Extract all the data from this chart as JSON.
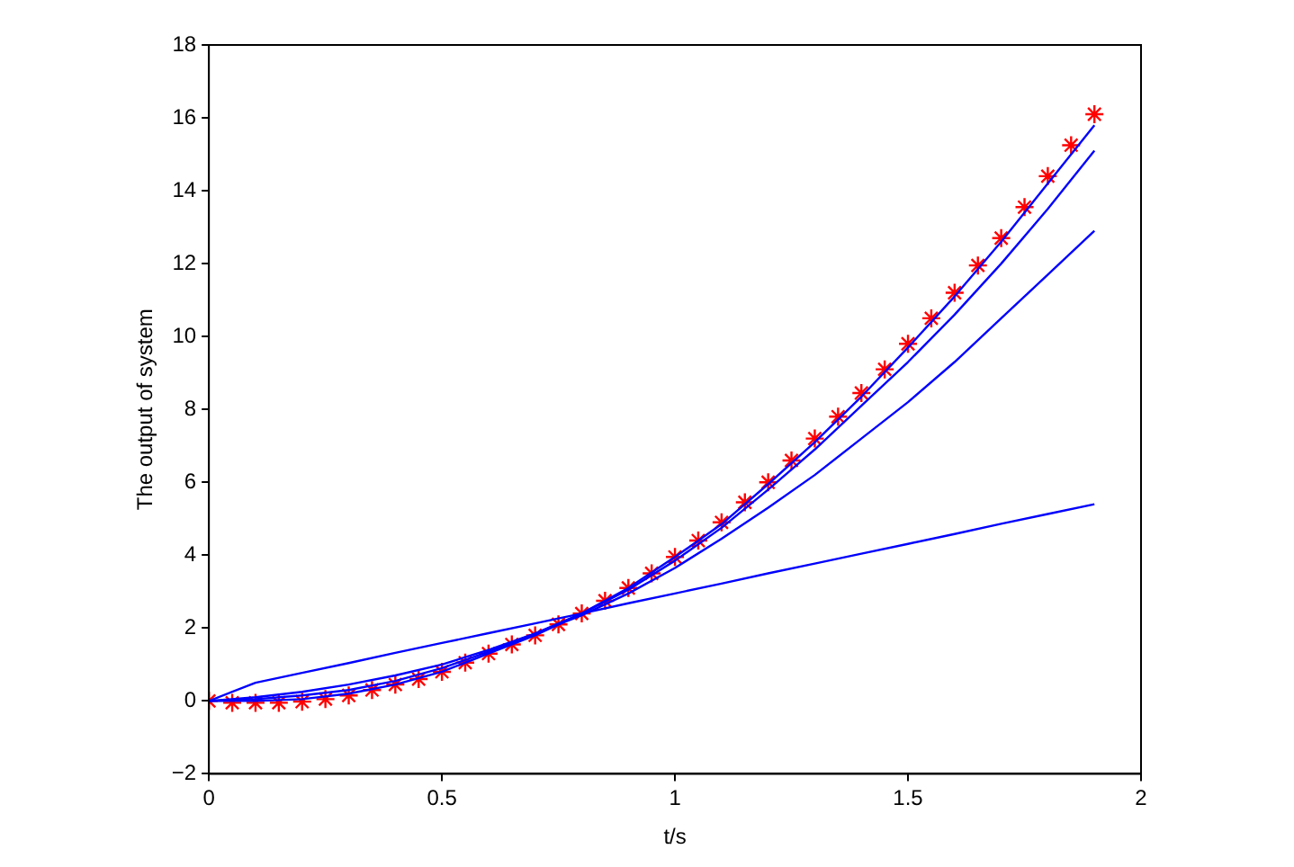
{
  "chart_data": {
    "type": "line",
    "xlabel": "t/s",
    "ylabel": "The output of system",
    "xlim": [
      0,
      2
    ],
    "ylim": [
      -2,
      18
    ],
    "xticks": [
      0,
      0.5,
      1,
      1.5,
      2
    ],
    "yticks": [
      {
        "value": -2,
        "label": "−2"
      },
      0,
      2,
      4,
      6,
      8,
      10,
      12,
      14,
      16,
      18
    ],
    "grid": false,
    "legend": false,
    "series": [
      {
        "color": "#0000ff",
        "marker": "none",
        "x": [
          0,
          0.1,
          0.2,
          0.3,
          0.4,
          0.5,
          0.6,
          0.7,
          0.8,
          0.9,
          1,
          1.1,
          1.2,
          1.3,
          1.4,
          1.5,
          1.6,
          1.7,
          1.8,
          1.9
        ],
        "values": [
          0,
          0.5,
          0.77,
          1.04,
          1.32,
          1.59,
          1.86,
          2.13,
          2.4,
          2.68,
          2.95,
          3.22,
          3.5,
          3.77,
          4.04,
          4.31,
          4.58,
          4.86,
          5.13,
          5.4
        ]
      },
      {
        "color": "#0000ff",
        "marker": "none",
        "x": [
          0,
          0.1,
          0.2,
          0.3,
          0.4,
          0.5,
          0.6,
          0.7,
          0.8,
          0.9,
          1,
          1.1,
          1.2,
          1.3,
          1.4,
          1.5,
          1.6,
          1.7,
          1.8,
          1.9
        ],
        "values": [
          0,
          0.1,
          0.25,
          0.45,
          0.7,
          1.0,
          1.4,
          1.85,
          2.35,
          2.95,
          3.65,
          4.45,
          5.3,
          6.2,
          7.2,
          8.2,
          9.3,
          10.5,
          11.7,
          12.9
        ]
      },
      {
        "color": "#0000ff",
        "marker": "none",
        "x": [
          0,
          0.1,
          0.2,
          0.3,
          0.4,
          0.5,
          0.6,
          0.7,
          0.8,
          0.9,
          1,
          1.1,
          1.2,
          1.3,
          1.4,
          1.5,
          1.6,
          1.7,
          1.8,
          1.9
        ],
        "values": [
          0,
          0.05,
          0.15,
          0.3,
          0.55,
          0.9,
          1.35,
          1.85,
          2.4,
          3.05,
          3.85,
          4.75,
          5.8,
          6.9,
          8.1,
          9.3,
          10.6,
          12.0,
          13.5,
          15.1
        ]
      },
      {
        "color": "#0000ff",
        "marker": "none",
        "x": [
          0,
          0.1,
          0.2,
          0.3,
          0.4,
          0.5,
          0.6,
          0.7,
          0.8,
          0.9,
          1,
          1.1,
          1.2,
          1.3,
          1.4,
          1.5,
          1.6,
          1.7,
          1.8,
          1.9
        ],
        "values": [
          0,
          0,
          0.05,
          0.2,
          0.45,
          0.8,
          1.3,
          1.8,
          2.4,
          3.1,
          3.95,
          4.85,
          5.95,
          7.1,
          8.35,
          9.7,
          11.1,
          12.6,
          14.2,
          15.8
        ]
      },
      {
        "type": "scatter",
        "color": "#ff0000",
        "marker": "cross",
        "x": [
          0,
          0.05,
          0.1,
          0.15,
          0.2,
          0.25,
          0.3,
          0.35,
          0.4,
          0.45,
          0.5,
          0.55,
          0.6,
          0.65,
          0.7,
          0.75,
          0.8,
          0.85,
          0.9,
          0.95,
          1,
          1.05,
          1.1,
          1.15,
          1.2,
          1.25,
          1.3,
          1.35,
          1.4,
          1.45,
          1.5,
          1.55,
          1.6,
          1.65,
          1.7,
          1.75,
          1.8,
          1.85,
          1.9
        ],
        "values": [
          0,
          -0.05,
          -0.05,
          -0.05,
          -0.02,
          0.05,
          0.15,
          0.3,
          0.45,
          0.6,
          0.8,
          1.05,
          1.3,
          1.55,
          1.8,
          2.1,
          2.4,
          2.75,
          3.1,
          3.5,
          3.95,
          4.4,
          4.9,
          5.45,
          6.0,
          6.6,
          7.2,
          7.8,
          8.45,
          9.1,
          9.8,
          10.5,
          11.2,
          11.95,
          12.7,
          13.55,
          14.4,
          15.25,
          16.1
        ]
      }
    ]
  }
}
